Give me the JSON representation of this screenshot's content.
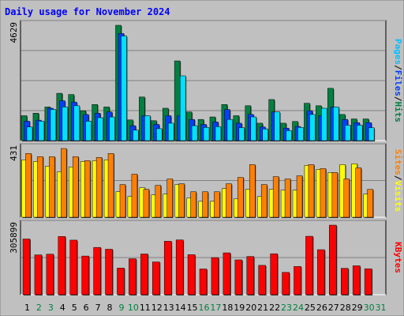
{
  "page": {
    "title": "Daily usage for November 2024"
  },
  "chart_data": [
    {
      "type": "bar",
      "panel": "hits-files-pages",
      "max_label": "4629",
      "categories": [
        "1",
        "2",
        "3",
        "4",
        "5",
        "6",
        "7",
        "8",
        "9",
        "10",
        "11",
        "12",
        "13",
        "14",
        "15",
        "16",
        "17",
        "18",
        "19",
        "20",
        "21",
        "22",
        "23",
        "24",
        "25",
        "26",
        "27",
        "28",
        "29",
        "30",
        "31"
      ],
      "series": [
        {
          "name": "Hits",
          "color": "#008040",
          "values": [
            1000,
            1100,
            1350,
            1900,
            1850,
            1200,
            1450,
            1350,
            4629,
            830,
            1750,
            800,
            1300,
            3200,
            1150,
            850,
            950,
            1450,
            1000,
            1400,
            700,
            1650,
            700,
            770,
            1500,
            1400,
            2100,
            1050,
            870,
            870,
            0
          ]
        },
        {
          "name": "Files",
          "color": "#0040ff",
          "values": [
            780,
            820,
            1300,
            1600,
            1550,
            1050,
            1100,
            1150,
            4300,
            600,
            1000,
            650,
            1000,
            1000,
            850,
            650,
            750,
            1250,
            700,
            1050,
            550,
            1150,
            500,
            570,
            1200,
            1000,
            1350,
            850,
            720,
            720,
            0
          ]
        },
        {
          "name": "Pages",
          "color": "#00e0ff",
          "values": [
            550,
            780,
            1250,
            1350,
            1400,
            780,
            920,
            950,
            4200,
            420,
            1000,
            480,
            700,
            2600,
            600,
            530,
            560,
            850,
            520,
            950,
            470,
            1150,
            400,
            530,
            1050,
            1300,
            1350,
            620,
            620,
            520,
            0
          ]
        }
      ],
      "ylim": [
        0,
        4629
      ],
      "grid": true
    },
    {
      "type": "bar",
      "panel": "visits-sites",
      "max_label": "431",
      "categories": [
        "1",
        "2",
        "3",
        "4",
        "5",
        "6",
        "7",
        "8",
        "9",
        "10",
        "11",
        "12",
        "13",
        "14",
        "15",
        "16",
        "17",
        "18",
        "19",
        "20",
        "21",
        "22",
        "23",
        "24",
        "25",
        "26",
        "27",
        "28",
        "29",
        "30",
        "31"
      ],
      "series": [
        {
          "name": "Visits",
          "color": "#ffff00",
          "values": [
            360,
            350,
            320,
            285,
            315,
            350,
            355,
            360,
            160,
            130,
            185,
            140,
            145,
            205,
            120,
            100,
            100,
            180,
            115,
            175,
            130,
            175,
            170,
            170,
            325,
            300,
            280,
            330,
            335,
            145,
            0
          ]
        },
        {
          "name": "Sites",
          "color": "#ff8000",
          "values": [
            400,
            380,
            380,
            431,
            380,
            355,
            375,
            400,
            205,
            270,
            175,
            200,
            240,
            210,
            160,
            160,
            160,
            210,
            250,
            330,
            205,
            255,
            240,
            260,
            330,
            305,
            280,
            240,
            310,
            175,
            0
          ]
        }
      ],
      "ylim": [
        0,
        431
      ],
      "grid": true
    },
    {
      "type": "bar",
      "panel": "kbytes",
      "max_label": "305899",
      "categories": [
        "1",
        "2",
        "3",
        "4",
        "5",
        "6",
        "7",
        "8",
        "9",
        "10",
        "11",
        "12",
        "13",
        "14",
        "15",
        "16",
        "17",
        "18",
        "19",
        "20",
        "21",
        "22",
        "23",
        "24",
        "25",
        "26",
        "27",
        "28",
        "29",
        "30",
        "31"
      ],
      "series": [
        {
          "name": "KBytes",
          "color": "#ff0000",
          "values": [
            245000,
            175000,
            178000,
            256000,
            240000,
            170000,
            208000,
            200000,
            117000,
            158000,
            179000,
            144000,
            235000,
            241000,
            176000,
            113000,
            163000,
            184000,
            153000,
            168000,
            129000,
            180000,
            98000,
            124000,
            257000,
            198000,
            305899,
            116000,
            127000,
            114000,
            0
          ]
        }
      ],
      "ylim": [
        0,
        305899
      ],
      "grid": true
    }
  ],
  "legend": {
    "top": [
      {
        "text": "Pages",
        "color": "#00c0ff"
      },
      {
        "text": "/",
        "color": "#000000"
      },
      {
        "text": "Files",
        "color": "#0040ff"
      },
      {
        "text": "/",
        "color": "#000000"
      },
      {
        "text": "Hits",
        "color": "#008040"
      }
    ],
    "middle": [
      {
        "text": "Sites",
        "color": "#ff8000"
      },
      {
        "text": "/",
        "color": "#000000"
      },
      {
        "text": "Visits",
        "color": "#ffff00"
      }
    ],
    "bottom": [
      {
        "text": "KBytes",
        "color": "#ff0000"
      }
    ]
  },
  "day_label_colors": {
    "weekday": "#000000",
    "weekend": "#008040"
  },
  "weekend_days": [
    "2",
    "3",
    "9",
    "10",
    "16",
    "17",
    "23",
    "24",
    "30",
    "31"
  ],
  "colors": {
    "frame_bg": "#c0c0c0",
    "plot_bg": "#c0c0c0",
    "title": "#0000ff",
    "grid": "#808080"
  }
}
